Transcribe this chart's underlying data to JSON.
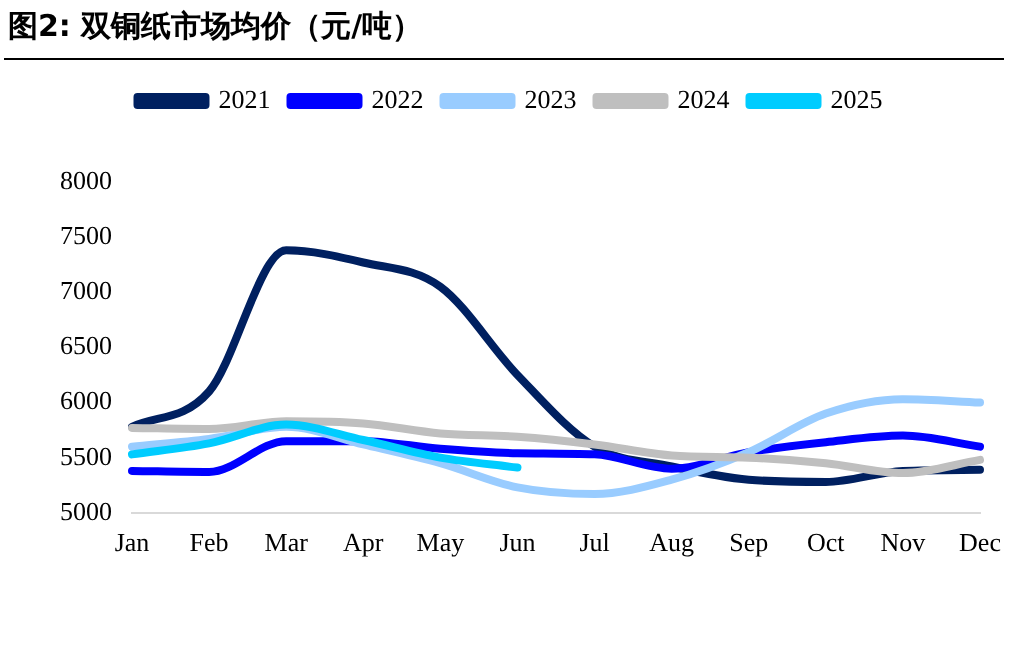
{
  "chart_data": {
    "type": "line",
    "title": "图2:  双铜纸市场均价（元/吨）",
    "categories": [
      "Jan",
      "Feb",
      "Mar",
      "Apr",
      "May",
      "Jun",
      "Jul",
      "Aug",
      "Sep",
      "Oct",
      "Nov",
      "Dec"
    ],
    "series": [
      {
        "name": "2021",
        "color": "#002060",
        "values": [
          5780,
          6100,
          7380,
          7270,
          7050,
          6250,
          5600,
          5420,
          5300,
          5280,
          5380,
          5390
        ]
      },
      {
        "name": "2022",
        "color": "#0000ff",
        "values": [
          5380,
          5370,
          5650,
          5650,
          5580,
          5540,
          5530,
          5400,
          5550,
          5640,
          5700,
          5600
        ]
      },
      {
        "name": "2023",
        "color": "#99ccff",
        "values": [
          5600,
          5670,
          5780,
          5620,
          5450,
          5230,
          5170,
          5300,
          5550,
          5900,
          6030,
          6000
        ]
      },
      {
        "name": "2024",
        "color": "#bfbfbf",
        "values": [
          5770,
          5760,
          5830,
          5810,
          5720,
          5690,
          5620,
          5520,
          5500,
          5450,
          5360,
          5480
        ]
      },
      {
        "name": "2025",
        "color": "#00ccff",
        "values": [
          5530,
          5630,
          5800,
          5660,
          5500,
          5410,
          null,
          null,
          null,
          null,
          null,
          null
        ]
      }
    ],
    "ylim": [
      5000,
      8000
    ],
    "yticks": [
      5000,
      5500,
      6000,
      6500,
      7000,
      7500,
      8000
    ],
    "grid": false,
    "legend": "top",
    "marker": "none",
    "line_style": "solid"
  }
}
